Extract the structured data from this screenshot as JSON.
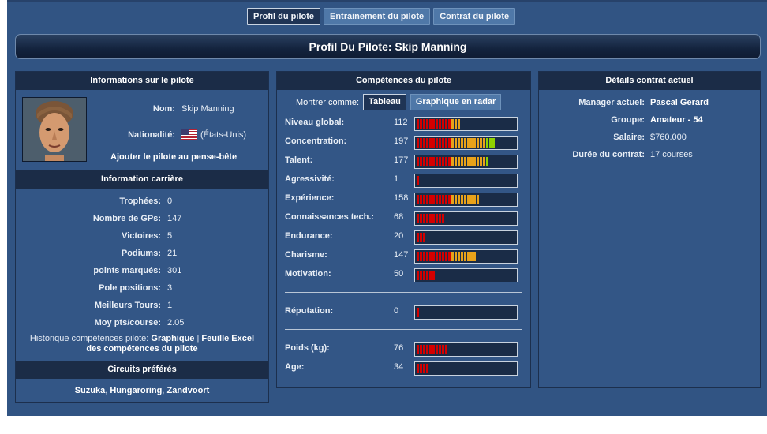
{
  "tabs": [
    "Profil du pilote",
    "Entrainement du pilote",
    "Contrat du pilote"
  ],
  "title": "Profil Du Pilote: Skip Manning",
  "info": {
    "header": "Informations sur le pilote",
    "name_label": "Nom:",
    "name": "Skip Manning",
    "nationality_label": "Nationalité:",
    "nationality": "(États-Unis)",
    "watchlist": "Ajouter le pilote au pense-bête"
  },
  "career": {
    "header": "Information carrière",
    "rows": [
      {
        "label": "Trophées:",
        "value": "0"
      },
      {
        "label": "Nombre de GPs:",
        "value": "147"
      },
      {
        "label": "Victoires:",
        "value": "5"
      },
      {
        "label": "Podiums:",
        "value": "21"
      },
      {
        "label": "points marqués:",
        "value": "301"
      },
      {
        "label": "Pole positions:",
        "value": "3"
      },
      {
        "label": "Meilleurs Tours:",
        "value": "1"
      },
      {
        "label": "Moy pts/course:",
        "value": "2.05"
      }
    ],
    "history_prefix": "Historique compétences pilote:",
    "history_graph": "Graphique",
    "history_sep": "|",
    "history_excel_1": "Feuille Excel",
    "history_excel_2": "des compétences du pilote"
  },
  "circuits": {
    "header": "Circuits préférés",
    "items": [
      "Suzuka",
      "Hungaroring",
      "Zandvoort"
    ],
    "sep": ", "
  },
  "skills": {
    "header": "Compétences du pilote",
    "show_as": "Montrer comme:",
    "table_btn": "Tableau",
    "radar_btn": "Graphique en radar",
    "rows": [
      {
        "label": "Niveau global:",
        "value": 112
      },
      {
        "label": "Concentration:",
        "value": 197
      },
      {
        "label": "Talent:",
        "value": 177
      },
      {
        "label": "Agressivité:",
        "value": 1
      },
      {
        "label": "Expérience:",
        "value": 158
      },
      {
        "label": "Connaissances tech.:",
        "value": 68
      },
      {
        "label": "Endurance:",
        "value": 20
      },
      {
        "label": "Charisme:",
        "value": 147
      },
      {
        "label": "Motivation:",
        "value": 50
      }
    ],
    "reputation": {
      "label": "Réputation:",
      "value": 0
    },
    "physical": [
      {
        "label": "Poids (kg):",
        "value": 76
      },
      {
        "label": "Age:",
        "value": 34
      }
    ],
    "max_value": 250,
    "colors": {
      "low": "#d40000",
      "mid": "#e8a21a",
      "high": "#8fd200"
    }
  },
  "contract": {
    "header": "Détails contrat actuel",
    "rows": [
      {
        "label": "Manager actuel:",
        "value": "Pascal Gerard",
        "bold": true
      },
      {
        "label": "Groupe:",
        "value": "Amateur - 54",
        "bold": true
      },
      {
        "label": "Salaire:",
        "value": "$760.000",
        "bold": false
      },
      {
        "label": "Durée du contrat:",
        "value": "17 courses",
        "bold": false
      }
    ]
  }
}
